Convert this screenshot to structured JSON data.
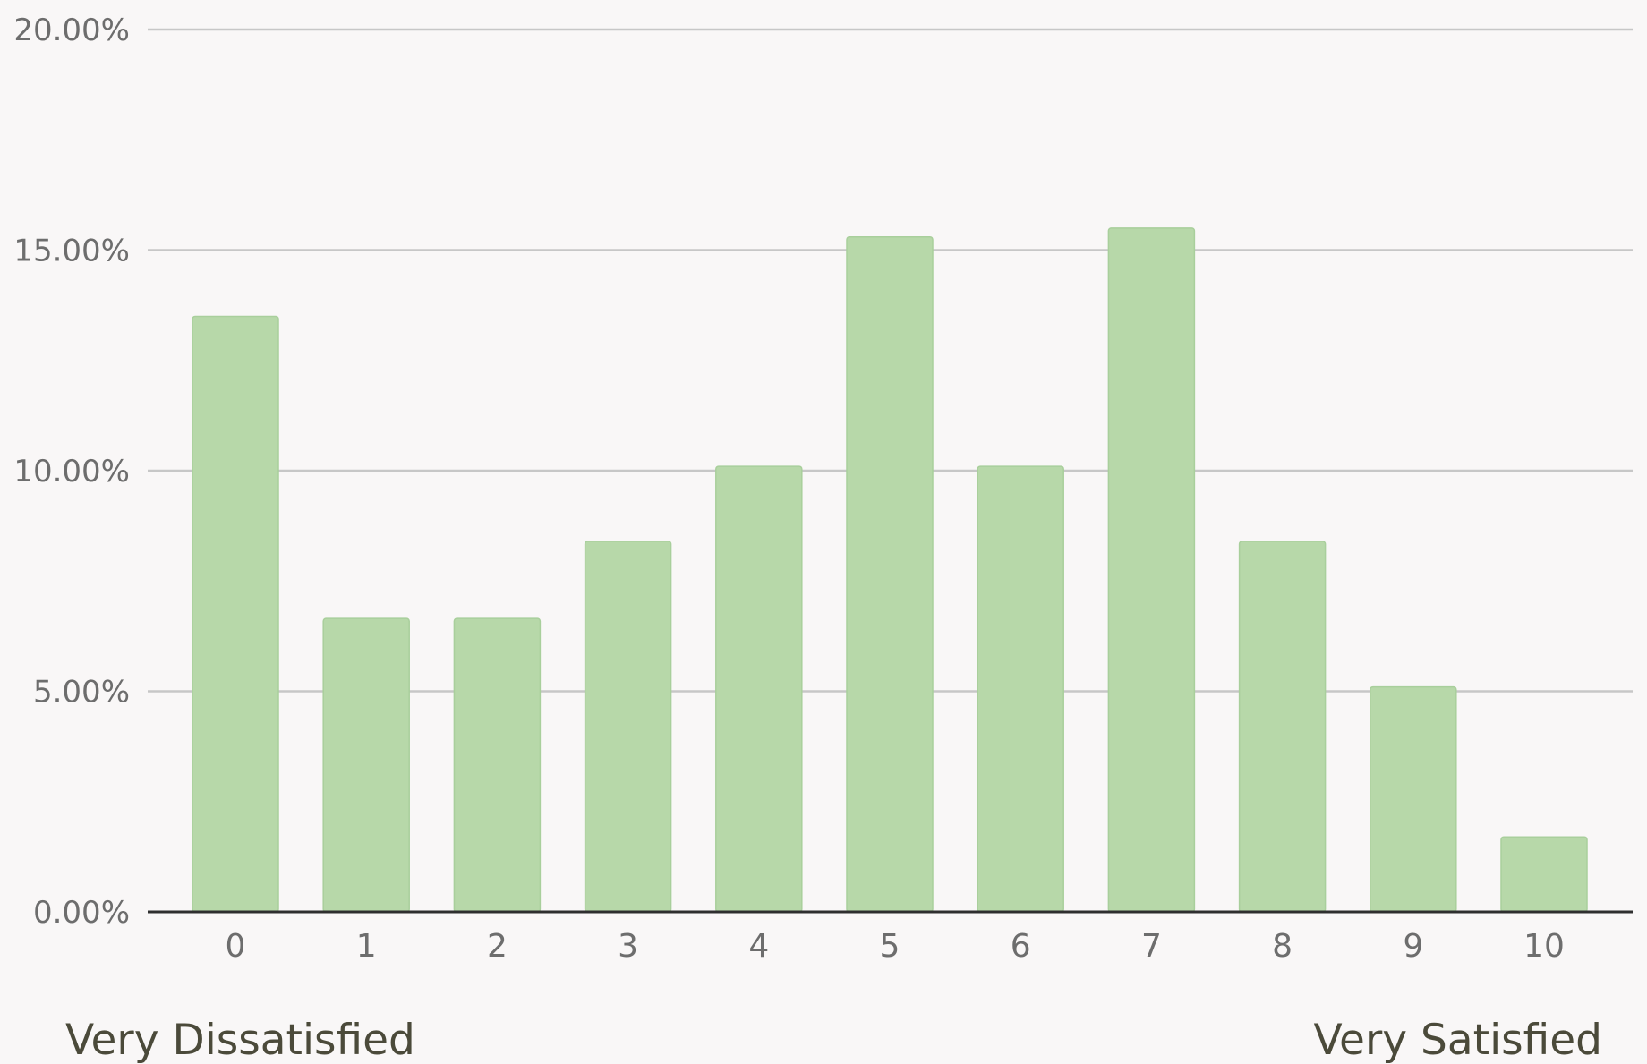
{
  "chart_data": {
    "type": "bar",
    "title": "",
    "xlabel": "",
    "ylabel": "",
    "categories": [
      "0",
      "1",
      "2",
      "3",
      "4",
      "5",
      "6",
      "7",
      "8",
      "9",
      "10"
    ],
    "values": [
      13.5,
      6.65,
      6.65,
      8.4,
      10.1,
      15.3,
      10.1,
      15.5,
      8.4,
      5.1,
      1.7
    ],
    "value_unit": "%",
    "ylim": [
      0,
      20
    ],
    "yticks": [
      "0.00%",
      "5.00%",
      "10.00%",
      "15.00%",
      "20.00%"
    ],
    "ytick_values": [
      0,
      5,
      10,
      15,
      20
    ],
    "grid": true,
    "legend": "none",
    "end_labels": {
      "left": "Very Dissatisfied",
      "right": "Very Satisfied"
    },
    "colors": {
      "bar": "#b7d8a9",
      "background": "#f9f7f7",
      "grid": "#c7c7c7",
      "axis": "#2f2f2f",
      "tick_text": "#6d6d6d",
      "end_label_text": "#4b4a3a"
    }
  }
}
